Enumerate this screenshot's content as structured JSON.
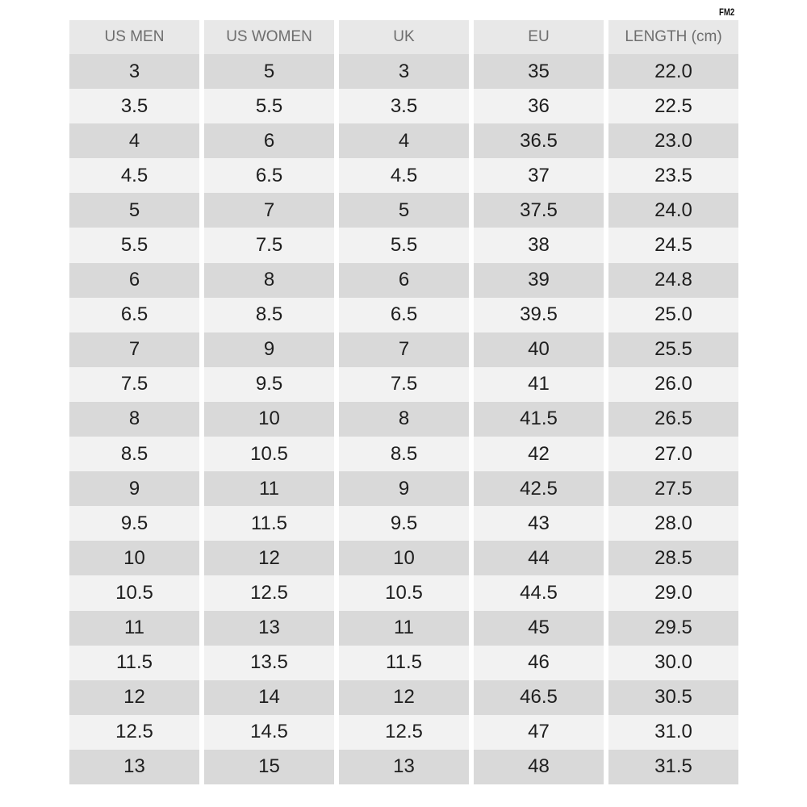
{
  "tag": "FM2",
  "headers": [
    "US MEN",
    "US WOMEN",
    "UK",
    "EU",
    "LENGTH (cm)"
  ],
  "rows": [
    [
      "3",
      "5",
      "3",
      "35",
      "22.0"
    ],
    [
      "3.5",
      "5.5",
      "3.5",
      "36",
      "22.5"
    ],
    [
      "4",
      "6",
      "4",
      "36.5",
      "23.0"
    ],
    [
      "4.5",
      "6.5",
      "4.5",
      "37",
      "23.5"
    ],
    [
      "5",
      "7",
      "5",
      "37.5",
      "24.0"
    ],
    [
      "5.5",
      "7.5",
      "5.5",
      "38",
      "24.5"
    ],
    [
      "6",
      "8",
      "6",
      "39",
      "24.8"
    ],
    [
      "6.5",
      "8.5",
      "6.5",
      "39.5",
      "25.0"
    ],
    [
      "7",
      "9",
      "7",
      "40",
      "25.5"
    ],
    [
      "7.5",
      "9.5",
      "7.5",
      "41",
      "26.0"
    ],
    [
      "8",
      "10",
      "8",
      "41.5",
      "26.5"
    ],
    [
      "8.5",
      "10.5",
      "8.5",
      "42",
      "27.0"
    ],
    [
      "9",
      "11",
      "9",
      "42.5",
      "27.5"
    ],
    [
      "9.5",
      "11.5",
      "9.5",
      "43",
      "28.0"
    ],
    [
      "10",
      "12",
      "10",
      "44",
      "28.5"
    ],
    [
      "10.5",
      "12.5",
      "10.5",
      "44.5",
      "29.0"
    ],
    [
      "11",
      "13",
      "11",
      "45",
      "29.5"
    ],
    [
      "11.5",
      "13.5",
      "11.5",
      "46",
      "30.0"
    ],
    [
      "12",
      "14",
      "12",
      "46.5",
      "30.5"
    ],
    [
      "12.5",
      "14.5",
      "12.5",
      "47",
      "31.0"
    ],
    [
      "13",
      "15",
      "13",
      "48",
      "31.5"
    ]
  ],
  "colors": {
    "header_bg": "#e8e8e8",
    "row_dark": "#d9d9d9",
    "row_light": "#f2f2f2",
    "header_text": "#6e6e6e",
    "body_text": "#1e1e1e"
  }
}
